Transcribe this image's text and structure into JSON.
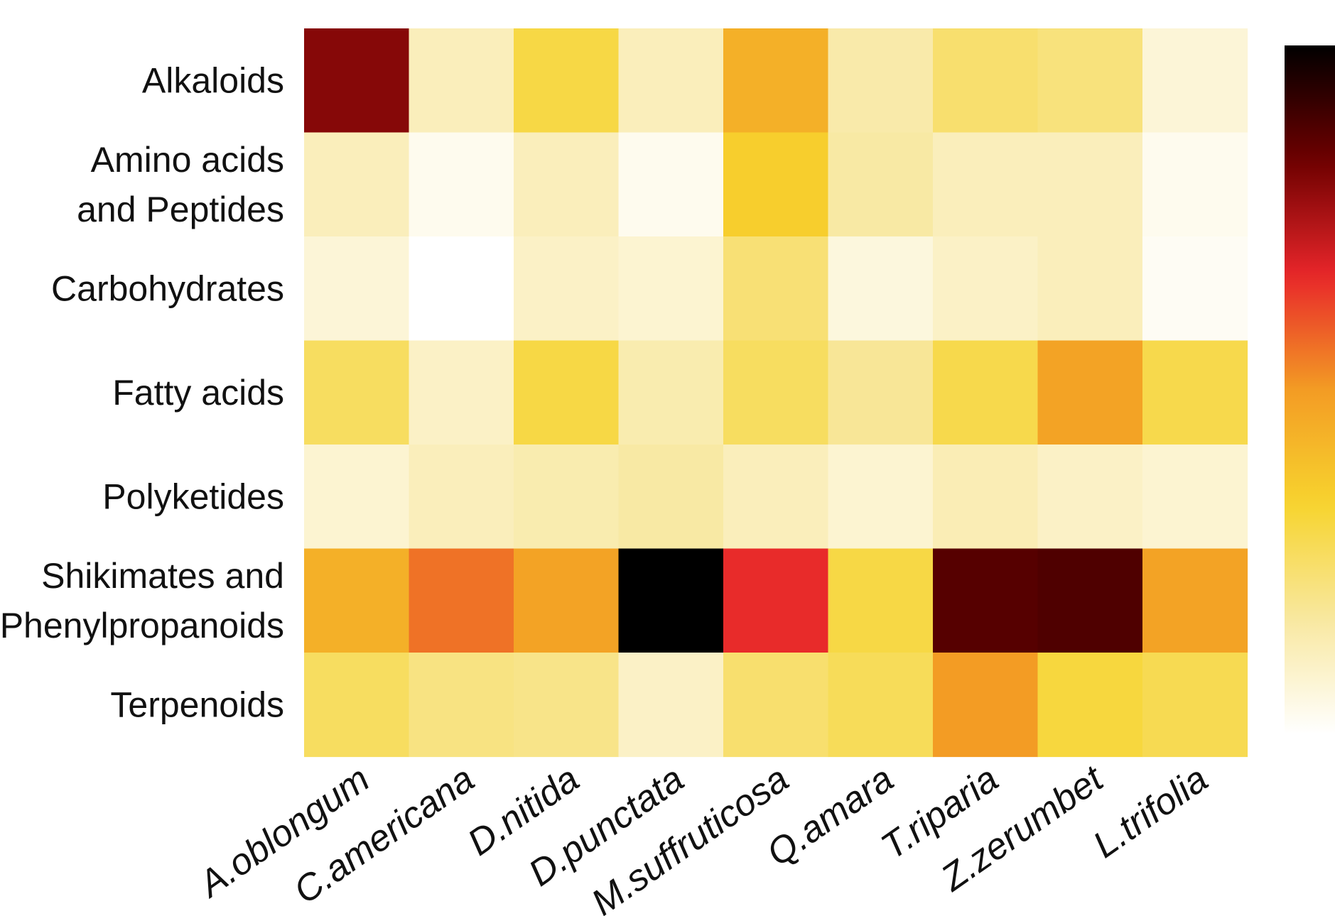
{
  "chart_data": {
    "type": "heatmap",
    "title": "",
    "xlabel": "",
    "ylabel": "",
    "rows": [
      [
        "Alkaloids"
      ],
      [
        "Amino acids",
        "and Peptides"
      ],
      [
        "Carbohydrates"
      ],
      [
        "Fatty acids"
      ],
      [
        "Polyketides"
      ],
      [
        "Shikimates and",
        "Phenylpropanoids"
      ],
      [
        "Terpenoids"
      ]
    ],
    "columns": [
      "A.oblongum",
      "C.americana",
      "D.nitida",
      "D.punctata",
      "M.suffruticosa",
      "Q.amara",
      "T.riparia",
      "Z.zerumbet",
      "L.trifolia"
    ],
    "values": [
      [
        0.8,
        0.12,
        0.3,
        0.12,
        0.44,
        0.15,
        0.24,
        0.22,
        0.07
      ],
      [
        0.12,
        0.03,
        0.12,
        0.03,
        0.35,
        0.16,
        0.12,
        0.12,
        0.03
      ],
      [
        0.07,
        0.0,
        0.1,
        0.08,
        0.23,
        0.06,
        0.1,
        0.12,
        0.02
      ],
      [
        0.26,
        0.1,
        0.3,
        0.14,
        0.26,
        0.18,
        0.29,
        0.48,
        0.29
      ],
      [
        0.08,
        0.12,
        0.14,
        0.16,
        0.12,
        0.08,
        0.13,
        0.1,
        0.08
      ],
      [
        0.44,
        0.56,
        0.48,
        1.0,
        0.66,
        0.3,
        0.87,
        0.88,
        0.48
      ],
      [
        0.26,
        0.21,
        0.2,
        0.1,
        0.24,
        0.27,
        0.5,
        0.31,
        0.28
      ]
    ],
    "colormap": [
      "#ffffff",
      "#f8e8a0",
      "#f7d42e",
      "#f39c24",
      "#e8262a",
      "#6e0000",
      "#000000"
    ],
    "colorbar": true,
    "grid": false
  }
}
